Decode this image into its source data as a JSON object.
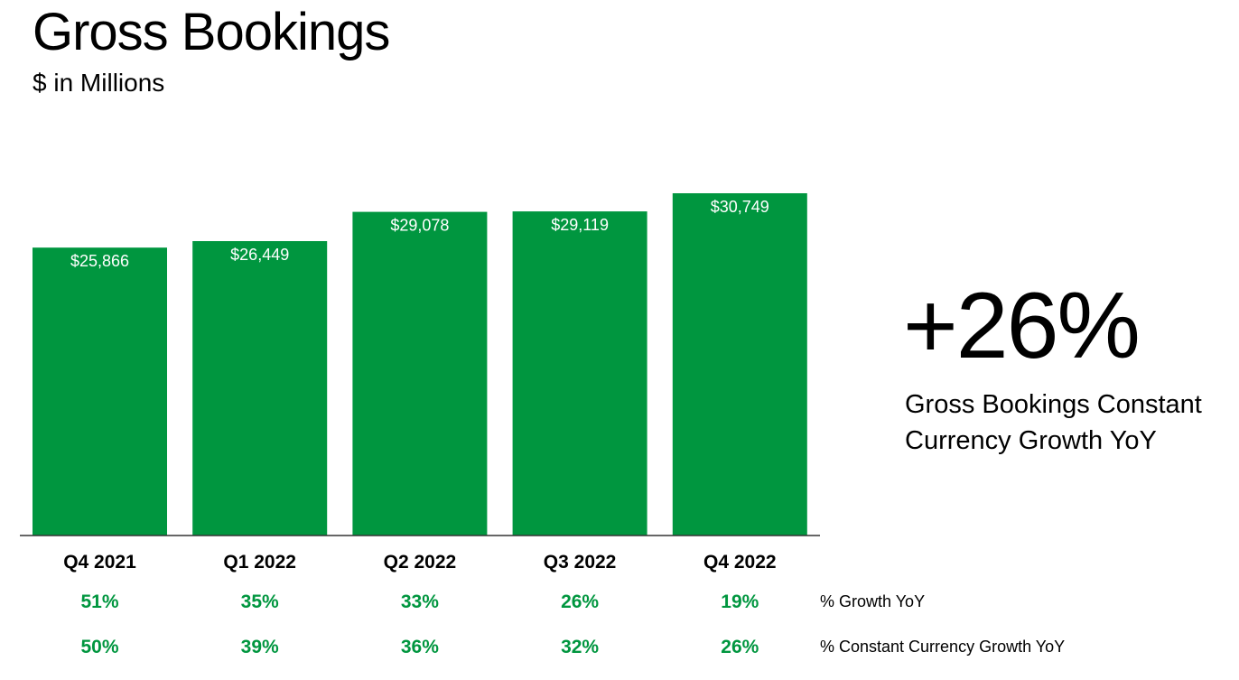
{
  "title": "Gross Bookings",
  "subtitle": "$ in Millions",
  "chart_data": {
    "type": "bar",
    "categories": [
      "Q4 2021",
      "Q1 2022",
      "Q2 2022",
      "Q3 2022",
      "Q4 2022"
    ],
    "values": [
      25866,
      26449,
      29078,
      29119,
      30749
    ],
    "value_labels": [
      "$25,866",
      "$26,449",
      "$29,078",
      "$29,119",
      "$30,749"
    ],
    "bar_color": "#00963f",
    "ylim": [
      0,
      30749
    ],
    "grid": false
  },
  "rows": [
    {
      "label": "% Growth YoY",
      "values": [
        "51%",
        "35%",
        "33%",
        "26%",
        "19%"
      ]
    },
    {
      "label": "% Constant Currency Growth YoY",
      "values": [
        "50%",
        "39%",
        "36%",
        "32%",
        "26%"
      ]
    }
  ],
  "highlight": {
    "value": "+26%",
    "caption_line1": "Gross Bookings Constant",
    "caption_line2": "Currency Growth YoY"
  }
}
